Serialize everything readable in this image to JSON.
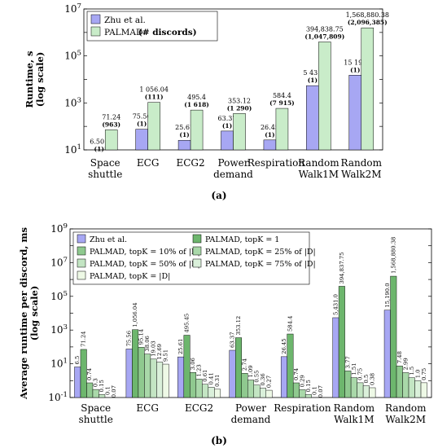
{
  "chart_data": [
    {
      "type": "bar",
      "log_scale": true,
      "ylabel": "Runtime, s\n(log scale)",
      "ylim": [
        10,
        10000000
      ],
      "yticks": [
        "10^1",
        "10^3",
        "10^5",
        "10^7"
      ],
      "categories": [
        "Space\nshuttle",
        "ECG",
        "ECG2",
        "Power\ndemand",
        "Respiration",
        "Random\nWalk1M",
        "Random\nWalk2M"
      ],
      "legend_position": "top-left",
      "series": [
        {
          "name": "Zhu et al.",
          "color": "#a7a7f3",
          "values": [
            6.501,
            75.56,
            25.61,
            63.37,
            26.45,
            5431,
            15190
          ],
          "labels": [
            "6.501",
            "75.56",
            "25.61",
            "63.37",
            "26.45",
            "5 431",
            "15 190"
          ],
          "sublabels": [
            "(1)",
            "(1)",
            "(1)",
            "(1)",
            "(1)",
            "(1)",
            "(1)"
          ]
        },
        {
          "name": "PALMAD",
          "name_bold": "(# discords)",
          "color": "#c9ecc9",
          "values": [
            71.24,
            1056.04,
            495.4,
            353.12,
            584.4,
            394838.75,
            1568880.38
          ],
          "labels": [
            "71.24",
            "1 056.04",
            "495.4",
            "353.12",
            "584.4",
            "394,838.75",
            "1,568,880.38"
          ],
          "sublabels": [
            "(963)",
            "(111)",
            "(1 618)",
            "(1 290)",
            "(7 915)",
            "(1,047,809)",
            "(2,096,385)"
          ]
        }
      ],
      "caption": "(a)"
    },
    {
      "type": "bar",
      "log_scale": true,
      "ylabel": "Average runtime per discord, ms\n(log scale)",
      "ylim": [
        0.1,
        1000000000
      ],
      "yticks": [
        "10^-1",
        "10^1",
        "10^3",
        "10^5",
        "10^7",
        "10^9"
      ],
      "categories": [
        "Space\nshuttle",
        "ECG",
        "ECG2",
        "Power\ndemand",
        "Respiration",
        "Random\nWalk1M",
        "Random\nWalk2M"
      ],
      "legend_position": "top-left",
      "series": [
        {
          "name": "Zhu et al.",
          "color": "#a7a7f3",
          "values": [
            6.5,
            75.56,
            25.61,
            63.37,
            26.45,
            5431.0,
            15190.0
          ],
          "labels": [
            "6.5",
            "75.56",
            "25.61",
            "63.37",
            "26.45",
            "5,431.0",
            "15,190.0"
          ]
        },
        {
          "name": "PALMAD, topK = 1",
          "color": "#6db66d",
          "values": [
            71.24,
            1056.04,
            495.45,
            353.12,
            584.4,
            394837.75,
            1568880.38
          ],
          "labels": [
            "71.24",
            "1,056.04",
            "495.45",
            "353.12",
            "584.4",
            "394,837.75",
            "1,568,880.38"
          ]
        },
        {
          "name": "PALMAD, topK = 10% of |D|",
          "color": "#8fc98f",
          "values": [
            0.74,
            95.14,
            3.06,
            2.74,
            0.74,
            3.77,
            7.48
          ],
          "labels": [
            "0.74",
            "95.14",
            "3.06",
            "2.74",
            "0.74",
            "3.77",
            "7.48"
          ]
        },
        {
          "name": "PALMAD, topK = 25% of |D|",
          "color": "#a9d8a9",
          "values": [
            0.3,
            38.06,
            1.23,
            1.09,
            0.29,
            1.51,
            2.99
          ],
          "labels": [
            "0.3",
            "38.06",
            "1.23",
            "1.09",
            "0.29",
            "1.51",
            "2.99"
          ]
        },
        {
          "name": "PALMAD, topK = 50% of |D|",
          "color": "#c3e5c3",
          "values": [
            0.15,
            19.03,
            0.61,
            0.55,
            0.15,
            0.75,
            1.5
          ],
          "labels": [
            "0.15",
            "19.03",
            "0.61",
            "0.55",
            "0.15",
            "0.75",
            "1.5"
          ]
        },
        {
          "name": "PALMAD, topK = 75% of |D|",
          "color": "#daf0da",
          "values": [
            0.1,
            12.69,
            0.41,
            0.36,
            0.1,
            0.5,
            1.0
          ],
          "labels": [
            "0.1",
            "12.69",
            "0.41",
            "0.36",
            "0.1",
            "0.5",
            "1.0"
          ]
        },
        {
          "name": "PALMAD, topK = |D|",
          "color": "#eef9e6",
          "values": [
            0.07,
            9.51,
            0.31,
            0.27,
            0.07,
            0.38,
            0.75
          ],
          "labels": [
            "0.07",
            "9.51",
            "0.31",
            "0.27",
            "0.07",
            "0.38",
            "0.75"
          ]
        }
      ],
      "caption": "(b)"
    }
  ]
}
